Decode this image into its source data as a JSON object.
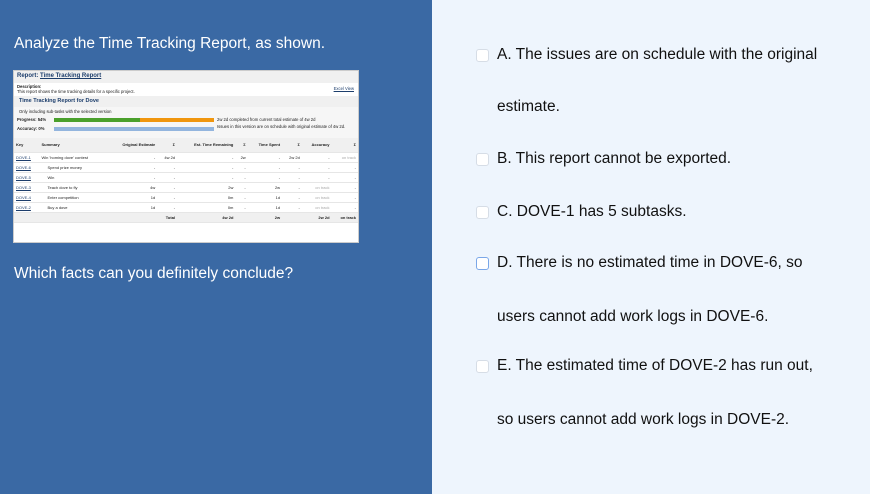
{
  "question": {
    "prompt": "Analyze the Time Tracking Report, as shown.",
    "ask": "Which facts can you definitely conclude?"
  },
  "report": {
    "label": "Report:",
    "title": "Time Tracking Report",
    "description_label": "Description:",
    "description": "This report shows the time tracking details for a specific project.",
    "excel": "Excel View",
    "subtitle": "Time Tracking Report for Dove",
    "note": "Only including sub-tasks with the selected version",
    "progress_label": "Progress: 54%",
    "progress": 54,
    "progress_text": "2w 2d completed from current total estimate of 4w 2d",
    "accuracy_label": "Accuracy: 0%",
    "accuracy": 0,
    "accuracy_text": "Issues in this version are on schedule with original estimate of 4w 2d.",
    "columns": [
      "Key",
      "Summary",
      "Original Estimate",
      "Σ",
      "Est. Time Remaining",
      "Σ",
      "Time Spent",
      "Σ",
      "Accuracy",
      "Σ"
    ],
    "rows": [
      [
        "DOVE-1",
        "Win 'homing dove' contest",
        "-",
        "4w 2d",
        "-",
        "2w",
        "-",
        "2w 2d",
        "-",
        "on track"
      ],
      [
        "DOVE-6",
        "Spend prize money",
        "-",
        "-",
        "-",
        "-",
        "-",
        "-",
        "-",
        "-"
      ],
      [
        "DOVE-5",
        "Win",
        "-",
        "-",
        "-",
        "-",
        "-",
        "-",
        "-",
        "-"
      ],
      [
        "DOVE-3",
        "Teach dove to fly",
        "4w",
        "-",
        "2w",
        "-",
        "2w",
        "-",
        "on track",
        "-"
      ],
      [
        "DOVE-4",
        "Enter competition",
        "1d",
        "-",
        "0m",
        "-",
        "1d",
        "-",
        "on track",
        "-"
      ],
      [
        "DOVE-2",
        "Buy a dove",
        "1d",
        "-",
        "0m",
        "-",
        "1d",
        "-",
        "on track",
        "-"
      ]
    ],
    "total": [
      "Total",
      "4w 2d",
      "2w",
      "2w 2d",
      "on track"
    ],
    "colors": {
      "progress_done": "#4aa02c",
      "progress_left": "#f0960e",
      "accuracy": "#93b5de"
    }
  },
  "options": [
    {
      "line1": "A. The issues are on schedule with the original",
      "line2": "estimate."
    },
    {
      "line1": "B. This report cannot be exported."
    },
    {
      "line1": "C. DOVE-1 has 5 subtasks."
    },
    {
      "line1": "D. There is no estimated time in DOVE-6, so",
      "line2": "users cannot add work logs in DOVE-6."
    },
    {
      "line1": "E. The estimated time of DOVE-2 has run out,",
      "line2": "so users cannot add work logs in DOVE-2."
    }
  ]
}
